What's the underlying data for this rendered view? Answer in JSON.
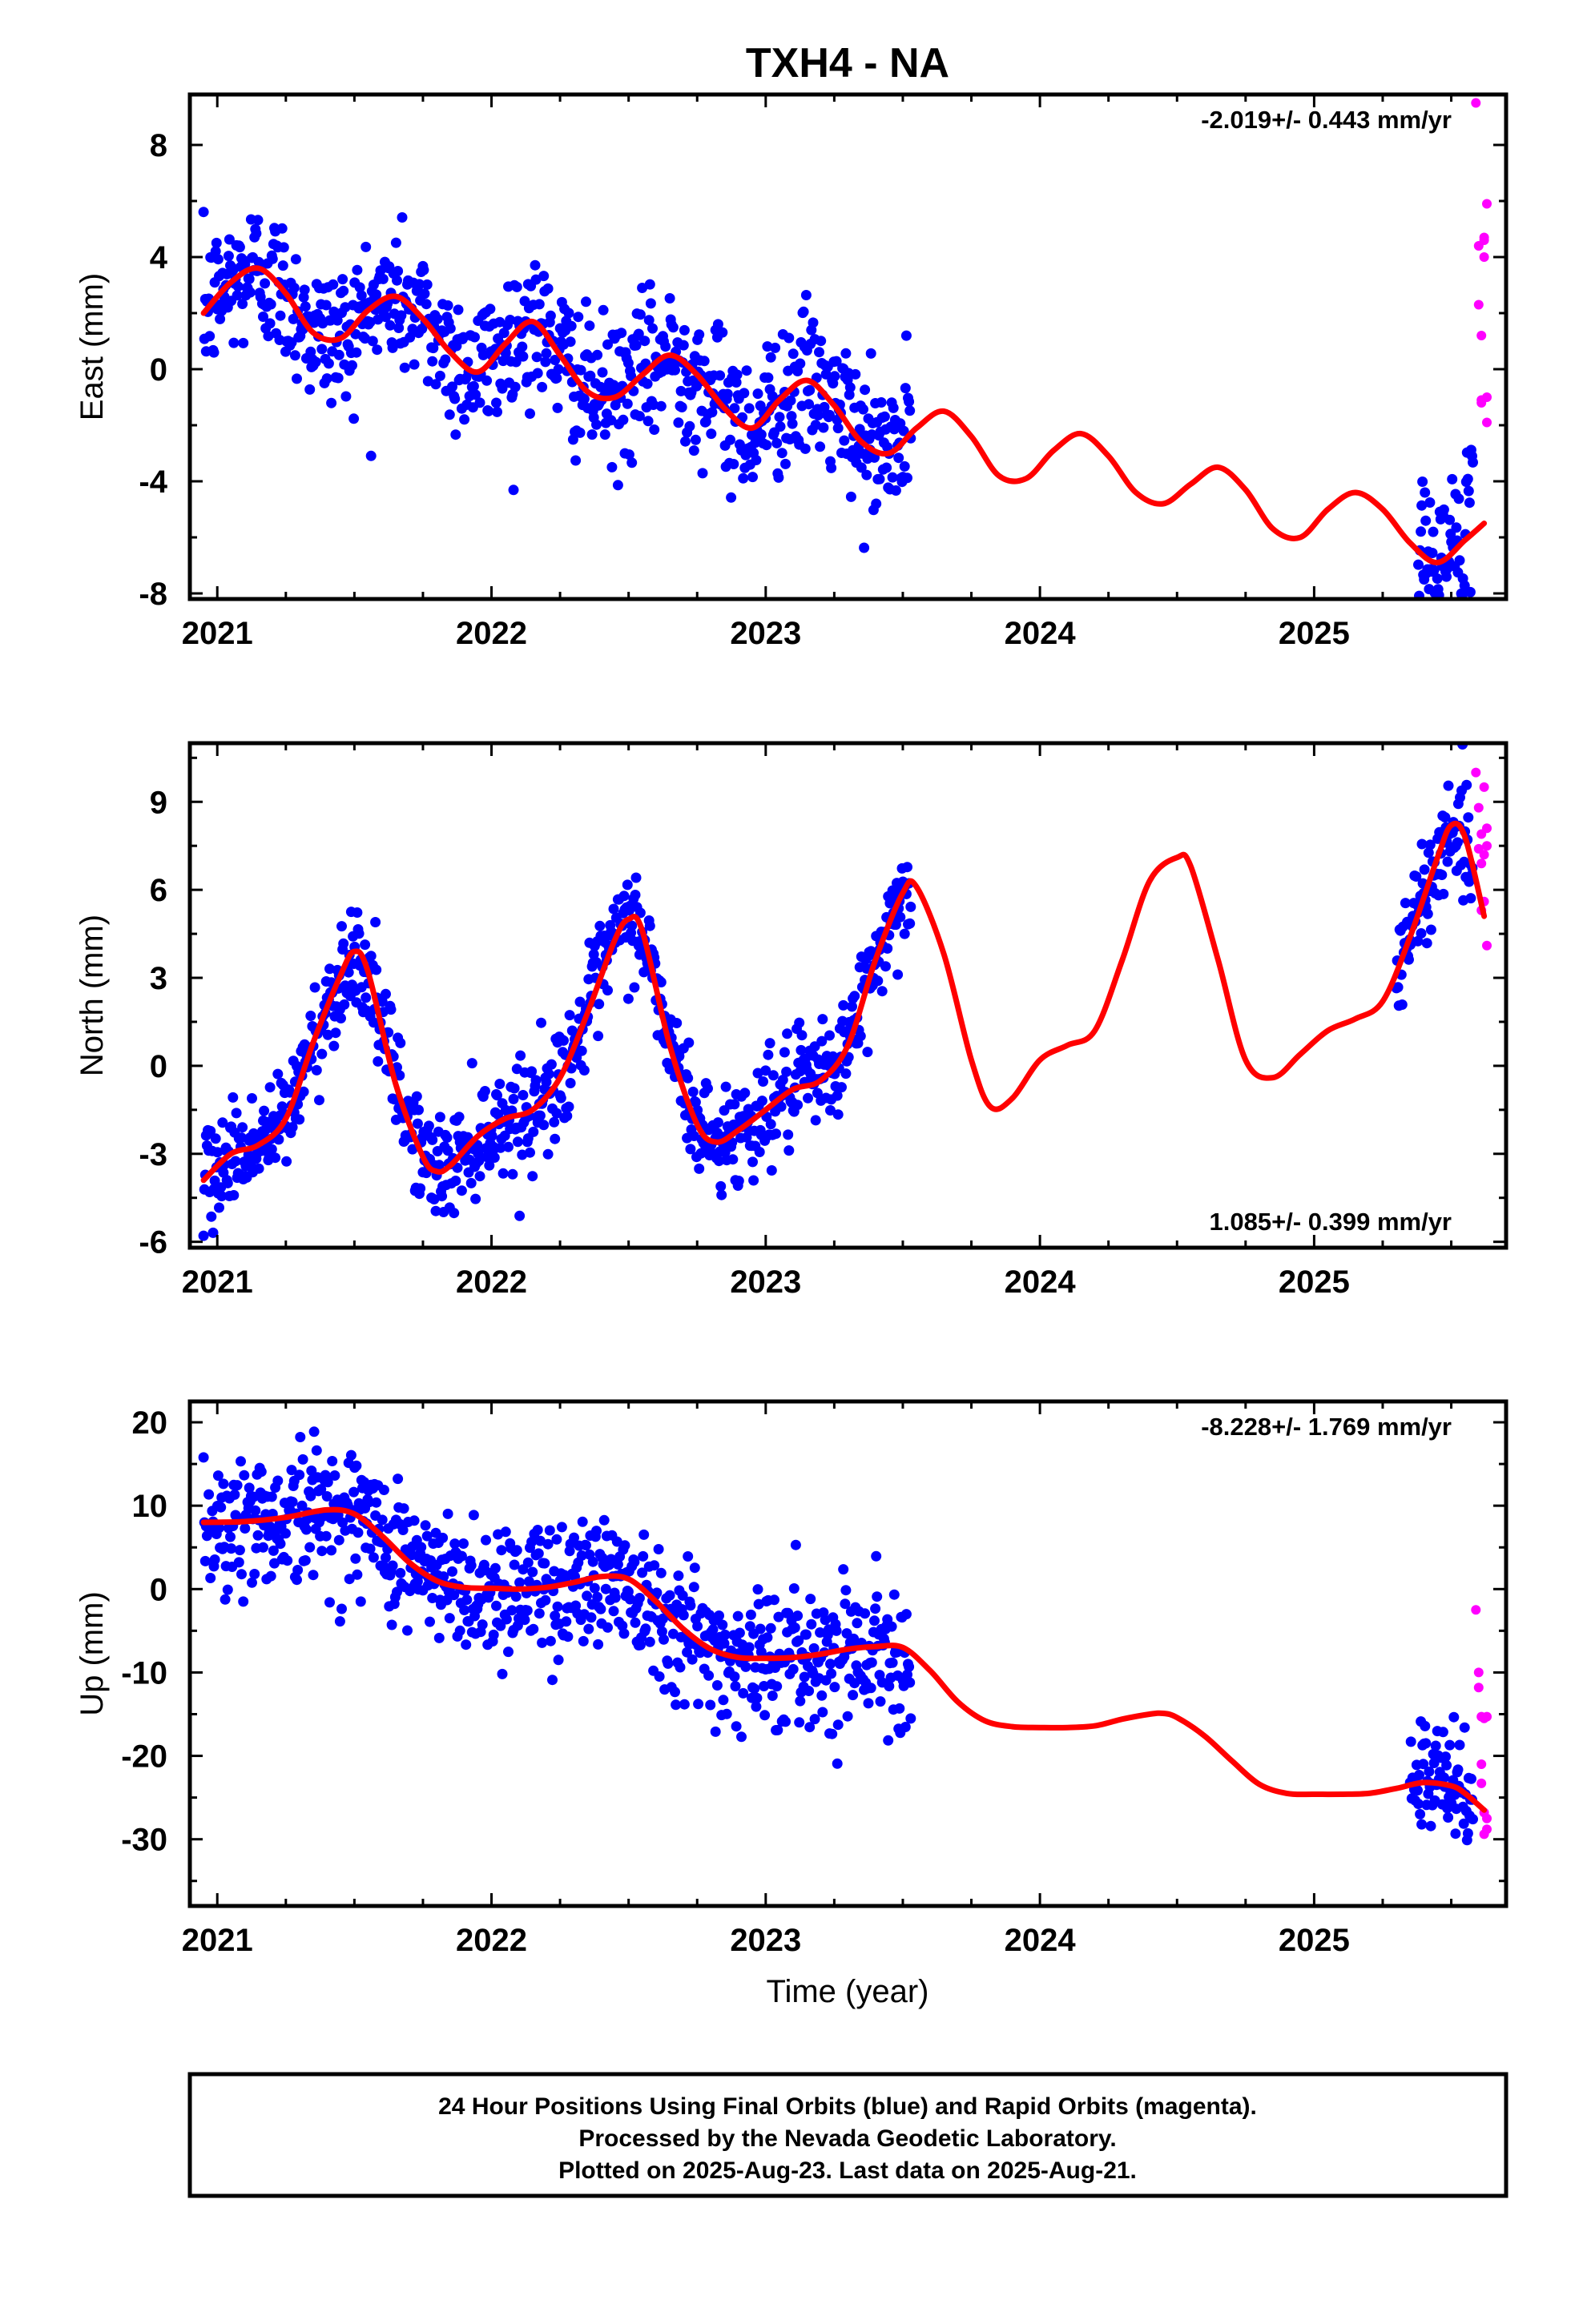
{
  "figure": {
    "title": "TXH4 - NA",
    "xlabel": "Time (year)",
    "footer": [
      "24 Hour Positions Using Final Orbits (blue) and Rapid Orbits (magenta).",
      "Processed by the Nevada Geodetic Laboratory.",
      "Plotted on 2025-Aug-23. Last data on 2025-Aug-21."
    ],
    "colors": {
      "final": "#0000ff",
      "rapid": "#ff00ff",
      "fit": "#ff0000"
    }
  },
  "chart_data": [
    {
      "type": "scatter",
      "ylabel": "East (mm)",
      "rate_text": "-2.019+/- 0.443 mm/yr",
      "rate_position": "top-right",
      "xlim": [
        2020.9,
        2025.7
      ],
      "ylim": [
        -8.2,
        9.8
      ],
      "xticks": [
        2021,
        2022,
        2023,
        2024,
        2025
      ],
      "yticks": [
        -8,
        -4,
        0,
        4,
        8
      ],
      "series_model": {
        "start": 2020.95,
        "end": 2023.53,
        "offset": 2.0,
        "trend": -2.019,
        "annual_amp": 1.0,
        "annual_phase": 0.66,
        "semi_amp": 0.6,
        "semi_phase": 0.1,
        "scatter": 1.3
      },
      "gap_series_model": {
        "start": 2025.38,
        "end": 2025.58,
        "scatter": 1.4
      },
      "fit": {
        "x": [
          2020.95,
          2021.05,
          2021.15,
          2021.25,
          2021.35,
          2021.45,
          2021.55,
          2021.65,
          2021.75,
          2021.85,
          2021.95,
          2022.05,
          2022.15,
          2022.25,
          2022.35,
          2022.45,
          2022.55,
          2022.65,
          2022.75,
          2022.85,
          2022.95,
          2023.05,
          2023.15,
          2023.25,
          2023.35,
          2023.45,
          2023.55,
          2023.65,
          2023.75,
          2023.85,
          2023.95,
          2024.05,
          2024.15,
          2024.25,
          2024.35,
          2024.45,
          2024.55,
          2024.65,
          2024.75,
          2024.85,
          2024.95,
          2025.05,
          2025.15,
          2025.25,
          2025.35,
          2025.45,
          2025.55,
          2025.62
        ],
        "y": [
          2.0,
          3.1,
          3.6,
          2.7,
          1.3,
          1.1,
          2.1,
          2.6,
          1.8,
          0.6,
          -0.1,
          0.9,
          1.7,
          0.5,
          -0.8,
          -1.0,
          -0.2,
          0.5,
          -0.2,
          -1.4,
          -2.1,
          -1.1,
          -0.4,
          -1.3,
          -2.6,
          -3.0,
          -2.1,
          -1.5,
          -2.4,
          -3.8,
          -3.9,
          -2.9,
          -2.3,
          -3.1,
          -4.4,
          -4.8,
          -4.1,
          -3.5,
          -4.3,
          -5.7,
          -6.0,
          -5.0,
          -4.4,
          -5.0,
          -6.2,
          -6.9,
          -6.1,
          -5.5
        ]
      },
      "rapid_points": {
        "x": [
          2025.59,
          2025.6,
          2025.6,
          2025.61,
          2025.61,
          2025.61,
          2025.62,
          2025.62,
          2025.62,
          2025.63,
          2025.63,
          2025.63
        ],
        "y": [
          9.5,
          4.4,
          2.3,
          1.2,
          -1.2,
          -1.1,
          4.6,
          4.0,
          4.7,
          5.9,
          -1.9,
          -1.0
        ]
      }
    },
    {
      "type": "scatter",
      "ylabel": "North (mm)",
      "rate_text": "1.085+/- 0.399 mm/yr",
      "rate_position": "bottom-right",
      "xlim": [
        2020.9,
        2025.7
      ],
      "ylim": [
        -6.2,
        11.0
      ],
      "xticks": [
        2021,
        2022,
        2023,
        2024,
        2025
      ],
      "yticks": [
        -6,
        -3,
        0,
        3,
        6,
        9
      ],
      "series_model": {
        "start": 2020.95,
        "end": 2023.53,
        "offset": -0.3,
        "trend": 1.085,
        "annual_amp": 4.2,
        "annual_phase": 0.27,
        "semi_amp": 0.7,
        "semi_phase": 0.1,
        "scatter": 0.9
      },
      "gap_series_model": {
        "start": 2025.3,
        "end": 2025.58,
        "scatter": 0.9
      },
      "fit": {
        "x": [
          2020.95,
          2021.05,
          2021.15,
          2021.25,
          2021.35,
          2021.45,
          2021.5,
          2021.55,
          2021.65,
          2021.75,
          2021.8,
          2021.85,
          2021.95,
          2022.05,
          2022.15,
          2022.25,
          2022.35,
          2022.45,
          2022.5,
          2022.55,
          2022.65,
          2022.75,
          2022.82,
          2022.9,
          2023.0,
          2023.1,
          2023.2,
          2023.3,
          2023.4,
          2023.5,
          2023.55,
          2023.65,
          2023.75,
          2023.82,
          2023.9,
          2024.0,
          2024.1,
          2024.2,
          2024.3,
          2024.4,
          2024.5,
          2024.55,
          2024.65,
          2024.75,
          2024.85,
          2024.95,
          2025.05,
          2025.15,
          2025.25,
          2025.35,
          2025.45,
          2025.5,
          2025.55,
          2025.62
        ],
        "y": [
          -3.9,
          -3.0,
          -2.7,
          -1.8,
          0.8,
          3.1,
          3.9,
          3.2,
          -0.6,
          -3.1,
          -3.6,
          -3.4,
          -2.4,
          -1.8,
          -1.5,
          -0.4,
          1.8,
          4.3,
          5.0,
          4.6,
          0.7,
          -2.0,
          -2.6,
          -2.2,
          -1.5,
          -0.8,
          -0.5,
          0.7,
          3.6,
          5.9,
          6.1,
          3.8,
          0.2,
          -1.4,
          -1.1,
          0.2,
          0.7,
          1.2,
          3.6,
          6.3,
          7.1,
          6.8,
          3.6,
          0.2,
          -0.4,
          0.4,
          1.2,
          1.6,
          2.2,
          4.4,
          7.1,
          8.2,
          7.8,
          5.1
        ]
      },
      "rapid_points": {
        "x": [
          2025.59,
          2025.6,
          2025.6,
          2025.61,
          2025.61,
          2025.61,
          2025.62,
          2025.62,
          2025.62,
          2025.63,
          2025.63,
          2025.63
        ],
        "y": [
          10.0,
          8.8,
          7.4,
          5.3,
          6.9,
          7.9,
          9.5,
          5.6,
          7.2,
          4.1,
          7.5,
          8.1
        ]
      }
    },
    {
      "type": "scatter",
      "ylabel": "Up (mm)",
      "rate_text": "-8.228+/- 1.769 mm/yr",
      "rate_position": "top-right",
      "xlim": [
        2020.9,
        2025.7
      ],
      "ylim": [
        -38.0,
        22.5
      ],
      "xticks": [
        2021,
        2022,
        2023,
        2024,
        2025
      ],
      "yticks": [
        -30,
        -20,
        -10,
        0,
        10,
        20
      ],
      "series_model": {
        "start": 2020.95,
        "end": 2023.53,
        "offset": 8.0,
        "trend": -8.228,
        "annual_amp": 2.0,
        "annual_phase": 0.45,
        "semi_amp": 0.6,
        "semi_phase": 0.2,
        "scatter": 4.2
      },
      "gap_series_model": {
        "start": 2025.35,
        "end": 2025.58,
        "scatter": 3.5
      },
      "fit": {
        "x": [
          2020.95,
          2021.1,
          2021.25,
          2021.4,
          2021.5,
          2021.6,
          2021.7,
          2021.8,
          2021.9,
          2022.0,
          2022.1,
          2022.2,
          2022.3,
          2022.4,
          2022.5,
          2022.6,
          2022.7,
          2022.8,
          2022.9,
          2023.0,
          2023.1,
          2023.2,
          2023.3,
          2023.4,
          2023.5,
          2023.6,
          2023.7,
          2023.8,
          2023.9,
          2024.0,
          2024.1,
          2024.2,
          2024.3,
          2024.4,
          2024.45,
          2024.5,
          2024.6,
          2024.7,
          2024.8,
          2024.9,
          2025.0,
          2025.1,
          2025.2,
          2025.3,
          2025.4,
          2025.5,
          2025.55,
          2025.62
        ],
        "y": [
          8.0,
          8.1,
          8.6,
          9.5,
          9.0,
          6.4,
          3.2,
          1.0,
          0.2,
          0.1,
          0.0,
          0.2,
          0.8,
          1.5,
          1.2,
          -1.5,
          -4.8,
          -7.2,
          -8.2,
          -8.3,
          -8.2,
          -7.8,
          -7.2,
          -6.9,
          -7.0,
          -9.8,
          -13.5,
          -15.8,
          -16.5,
          -16.6,
          -16.6,
          -16.4,
          -15.6,
          -15.0,
          -14.9,
          -15.4,
          -17.6,
          -20.6,
          -23.4,
          -24.5,
          -24.6,
          -24.6,
          -24.5,
          -23.9,
          -23.2,
          -23.6,
          -24.5,
          -26.5
        ]
      },
      "rapid_points": {
        "x": [
          2025.59,
          2025.6,
          2025.6,
          2025.61,
          2025.61,
          2025.61,
          2025.62,
          2025.62,
          2025.62,
          2025.63,
          2025.63,
          2025.63
        ],
        "y": [
          -2.5,
          -10.0,
          -11.8,
          -15.3,
          -21.0,
          -23.3,
          -26.8,
          -29.4,
          -15.5,
          -27.5,
          -28.8,
          -15.3
        ]
      }
    }
  ]
}
